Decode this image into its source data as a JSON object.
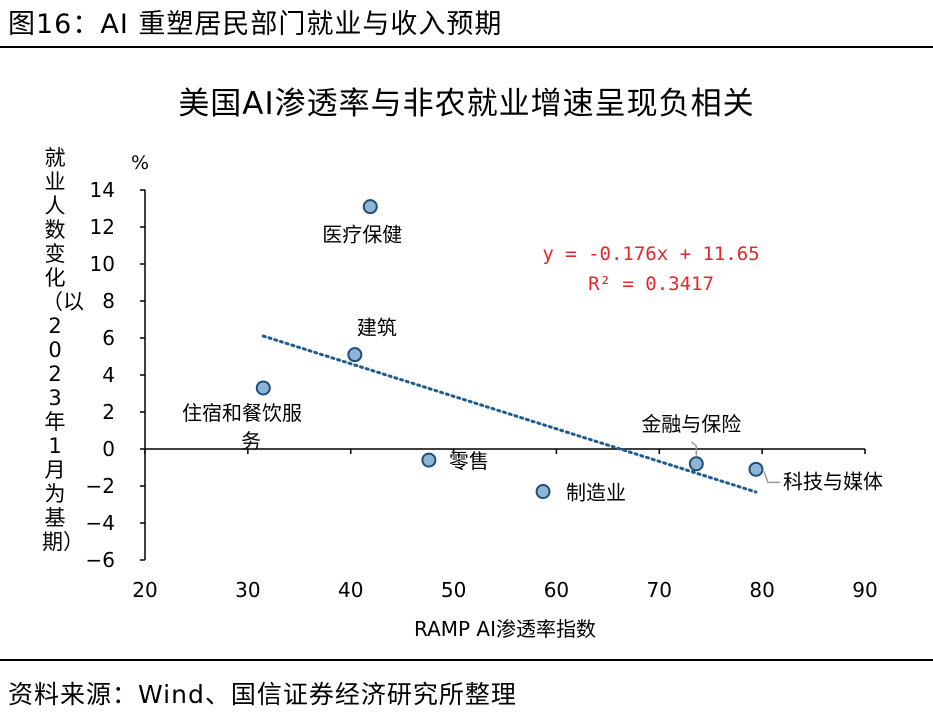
{
  "figure_title": "图16：AI 重塑居民部门就业与收入预期",
  "source": "资料来源：Wind、国信证券经济研究所整理",
  "chart_data": {
    "type": "scatter",
    "title": "美国AI渗透率与非农就业增速呈现负相关",
    "xlabel": "RAMP AI渗透率指数",
    "ylabel": "就业人数变化（以2023年1月为基期）",
    "y_unit": "%",
    "xlim": [
      20,
      90
    ],
    "ylim": [
      -6,
      14
    ],
    "x_ticks": [
      "20",
      "30",
      "40",
      "50",
      "60",
      "70",
      "80",
      "90"
    ],
    "y_ticks": [
      "14",
      "12",
      "10",
      "8",
      "6",
      "4",
      "2",
      "0",
      "−2",
      "−4",
      "−6"
    ],
    "points": [
      {
        "label": "医疗保健",
        "x": 41.9,
        "y": 13.1
      },
      {
        "label": "建筑",
        "x": 40.4,
        "y": 5.1
      },
      {
        "label": "住宿和餐饮服务",
        "x": 31.5,
        "y": 3.3
      },
      {
        "label": "零售",
        "x": 47.6,
        "y": -0.6
      },
      {
        "label": "制造业",
        "x": 58.7,
        "y": -2.3
      },
      {
        "label": "金融与保险",
        "x": 73.6,
        "y": -0.8
      },
      {
        "label": "科技与媒体",
        "x": 79.4,
        "y": -1.1
      }
    ],
    "trendline": {
      "slope": -0.176,
      "intercept": 11.65,
      "x_range": [
        31.5,
        79.4
      ],
      "equation": "y = -0.176x + 11.65",
      "r_squared": "R² = 0.3417"
    },
    "colors": {
      "marker_fill": "#8db5d8",
      "marker_stroke": "#1f4e79",
      "trendline": "#1f5c8f",
      "equation": "#e8262a",
      "axis": "#000000"
    }
  }
}
